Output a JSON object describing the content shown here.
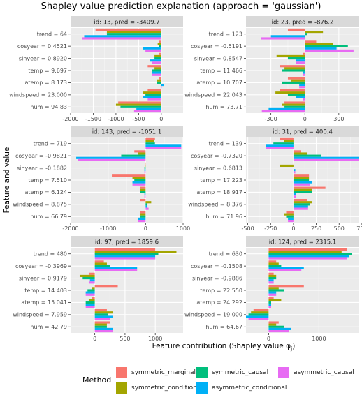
{
  "title": "Shapley value prediction explanation (approach = 'gaussian')",
  "xlabel": "Feature contribution (Shapley value φ",
  "xlabel_sub": "j",
  "xlabel_end": ")",
  "ylabel": "Feature and value",
  "legend": {
    "title": "Method",
    "items": [
      {
        "name": "symmetric_marginal",
        "color": "#F8766D"
      },
      {
        "name": "symmetric_conditional",
        "color": "#A3A500"
      },
      {
        "name": "symmetric_causal",
        "color": "#00BF7D"
      },
      {
        "name": "asymmetric_conditional",
        "color": "#00B0F6"
      },
      {
        "name": "asymmetric_causal",
        "color": "#E76BF3"
      }
    ]
  },
  "chart_data": [
    {
      "type": "bar",
      "strip": "id: 13, pred = -3409.7",
      "categories": [
        "trend = 64",
        "cosyear = 0.4521",
        "sinyear = 0.8920",
        "temp = 9.697",
        "atemp = 8.173",
        "windspeed = 23.000",
        "hum = 94.83"
      ],
      "xlim": [
        -2000,
        480
      ],
      "xticks": [
        -2000,
        -1500,
        -1000,
        -500,
        0
      ],
      "show_xticks": true,
      "series": [
        {
          "name": "symmetric_marginal",
          "values": [
            -1450,
            -50,
            -50,
            -300,
            -50,
            -300,
            -950
          ]
        },
        {
          "name": "symmetric_conditional",
          "values": [
            -1200,
            -80,
            -150,
            -150,
            -100,
            -400,
            -1000
          ]
        },
        {
          "name": "symmetric_causal",
          "values": [
            -1200,
            -50,
            -150,
            -200,
            -100,
            -350,
            -900
          ]
        },
        {
          "name": "asymmetric_conditional",
          "values": [
            -1700,
            -400,
            -250,
            -200,
            50,
            -400,
            -550
          ]
        },
        {
          "name": "asymmetric_causal",
          "values": [
            -1750,
            -350,
            -200,
            -200,
            0,
            -300,
            -600
          ]
        }
      ]
    },
    {
      "type": "bar",
      "strip": "id: 23, pred = -876.2",
      "categories": [
        "trend = 123",
        "cosyear = -0.5191",
        "sinyear = 0.8547",
        "temp = 11.466",
        "atemp = 10.707",
        "windspeed = 22.043",
        "hum = 73.71"
      ],
      "xlim": [
        -520,
        480
      ],
      "xticks": [
        -300,
        0,
        300
      ],
      "show_xticks": true,
      "series": [
        {
          "name": "symmetric_marginal",
          "values": [
            -150,
            100,
            -20,
            -220,
            -150,
            -220,
            -180
          ]
        },
        {
          "name": "symmetric_conditional",
          "values": [
            160,
            250,
            -250,
            -180,
            -120,
            -260,
            -200
          ]
        },
        {
          "name": "symmetric_causal",
          "values": [
            20,
            380,
            -150,
            -200,
            -200,
            -150,
            -180
          ]
        },
        {
          "name": "asymmetric_conditional",
          "values": [
            -300,
            280,
            -80,
            -20,
            -50,
            -80,
            -320
          ]
        },
        {
          "name": "asymmetric_causal",
          "values": [
            -390,
            430,
            -80,
            -20,
            -50,
            -20,
            -380
          ]
        }
      ]
    },
    {
      "type": "bar",
      "strip": "id: 143, pred = -1051.1",
      "categories": [
        "trend = 719",
        "cosyear = -0.9821",
        "sinyear = -0.1882",
        "temp = 7.510",
        "atemp = 6.124",
        "windspeed = 8.875",
        "hum = 66.79"
      ],
      "xlim": [
        -2000,
        1000
      ],
      "xticks": [
        -2000,
        -1000,
        0,
        1000
      ],
      "show_xticks": true,
      "series": [
        {
          "name": "symmetric_marginal",
          "values": [
            250,
            -300,
            -10,
            -900,
            -150,
            -150,
            -150
          ]
        },
        {
          "name": "symmetric_conditional",
          "values": [
            220,
            -200,
            -20,
            -350,
            -150,
            150,
            -150
          ]
        },
        {
          "name": "symmetric_causal",
          "values": [
            250,
            -650,
            -30,
            -300,
            -150,
            50,
            -150
          ]
        },
        {
          "name": "asymmetric_conditional",
          "values": [
            950,
            -1850,
            -30,
            -350,
            -30,
            50,
            -200
          ]
        },
        {
          "name": "asymmetric_causal",
          "values": [
            950,
            -1800,
            -30,
            -350,
            -30,
            80,
            -200
          ]
        }
      ]
    },
    {
      "type": "bar",
      "strip": "id: 31, pred =  400.4",
      "categories": [
        "trend = 139",
        "cosyear = -0.7320",
        "sinyear = 0.6813",
        "temp = 17.223",
        "atemp = 18.917",
        "windspeed = 8.376",
        "hum = 71.96"
      ],
      "xlim": [
        -520,
        720
      ],
      "xticks": [
        -500,
        -250,
        0,
        250,
        500,
        750
      ],
      "show_xticks": true,
      "series": [
        {
          "name": "symmetric_marginal",
          "values": [
            -150,
            80,
            0,
            170,
            350,
            150,
            -80
          ]
        },
        {
          "name": "symmetric_conditional",
          "values": [
            -100,
            150,
            -150,
            170,
            200,
            200,
            -100
          ]
        },
        {
          "name": "symmetric_causal",
          "values": [
            -220,
            300,
            0,
            170,
            200,
            180,
            -80
          ]
        },
        {
          "name": "asymmetric_conditional",
          "values": [
            -300,
            720,
            20,
            200,
            30,
            160,
            -60
          ]
        },
        {
          "name": "asymmetric_causal",
          "values": [
            -300,
            720,
            20,
            180,
            30,
            160,
            -60
          ]
        }
      ]
    },
    {
      "type": "bar",
      "strip": "id: 97, pred =  1859.6",
      "categories": [
        "trend = 480",
        "cosyear = -0.3969",
        "sinyear = 0.9179",
        "temp = 14.403",
        "atemp = 15.041",
        "windspeed = 7.959",
        "hum = 42.79"
      ],
      "xlim": [
        -400,
        1460
      ],
      "xticks": [
        0,
        500,
        1000
      ],
      "show_xticks": true,
      "series": [
        {
          "name": "symmetric_marginal",
          "values": [
            1000,
            150,
            -100,
            380,
            -50,
            200,
            250
          ]
        },
        {
          "name": "symmetric_conditional",
          "values": [
            1350,
            200,
            -250,
            -50,
            -100,
            300,
            200
          ]
        },
        {
          "name": "symmetric_causal",
          "values": [
            1050,
            250,
            -200,
            -120,
            -150,
            220,
            200
          ]
        },
        {
          "name": "asymmetric_conditional",
          "values": [
            1000,
            700,
            -80,
            -150,
            -150,
            300,
            300
          ]
        },
        {
          "name": "asymmetric_causal",
          "values": [
            1000,
            700,
            -100,
            -150,
            -150,
            250,
            300
          ]
        }
      ]
    },
    {
      "type": "bar",
      "strip": "id: 124, pred =  2315.1",
      "categories": [
        "trend = 630",
        "cosyear = -0.1508",
        "sinyear = -0.9886",
        "temp = 22.550",
        "atemp = 24.292",
        "windspeed = 19.000",
        "hum = 64.67"
      ],
      "xlim": [
        -450,
        1800
      ],
      "xticks": [
        0,
        1000
      ],
      "show_xticks": true,
      "series": [
        {
          "name": "symmetric_marginal",
          "values": [
            1550,
            150,
            100,
            700,
            100,
            -300,
            200
          ]
        },
        {
          "name": "symmetric_conditional",
          "values": [
            1450,
            200,
            150,
            200,
            250,
            -350,
            150
          ]
        },
        {
          "name": "symmetric_causal",
          "values": [
            1650,
            250,
            150,
            300,
            50,
            -400,
            300
          ]
        },
        {
          "name": "asymmetric_conditional",
          "values": [
            1600,
            700,
            100,
            150,
            50,
            -450,
            450
          ]
        },
        {
          "name": "asymmetric_causal",
          "values": [
            1550,
            650,
            100,
            150,
            50,
            -400,
            400
          ]
        }
      ]
    }
  ]
}
